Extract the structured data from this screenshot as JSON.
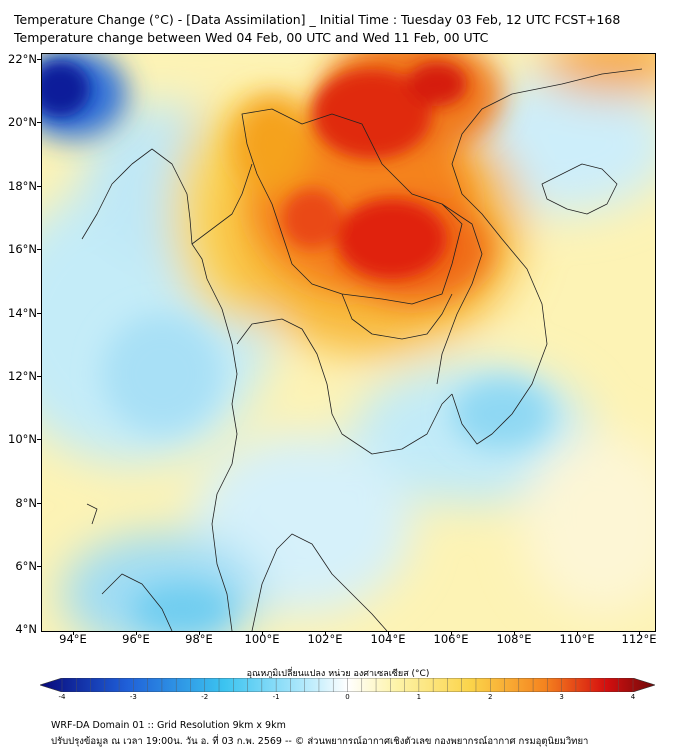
{
  "header": {
    "title_line1": "Temperature Change (°C) - [Data Assimilation] _ Initial Time : Tuesday 03 Feb, 12 UTC FCST+168",
    "title_line2": "Temperature change between Wed 04 Feb, 00 UTC and Wed 11 Feb, 00 UTC"
  },
  "axes": {
    "y_ticks": [
      "22°N",
      "20°N",
      "18°N",
      "16°N",
      "14°N",
      "12°N",
      "10°N",
      "8°N",
      "6°N",
      "4°N"
    ],
    "x_ticks": [
      "94°E",
      "96°E",
      "98°E",
      "100°E",
      "102°E",
      "104°E",
      "106°E",
      "108°E",
      "110°E",
      "112°E"
    ]
  },
  "map_extent": {
    "lon_min": 93.0,
    "lon_max": 112.5,
    "lat_min": 4.0,
    "lat_max": 22.2
  },
  "colorbar": {
    "title": "อุณหภูมิเปลี่ยนแปลง หน่วย องศาเซลเซียส (°C)",
    "min": -4,
    "max": 4,
    "tick_labels": [
      "-4",
      "-3",
      "-2",
      "-1",
      "0",
      "1",
      "2",
      "3",
      "4"
    ],
    "colors": {
      "cold_extreme": "#08087a",
      "cold": "#1f5fd8",
      "cool": "#3cc4f0",
      "cool_light": "#a8e6fb",
      "neutral": "#ffffff",
      "warm_light": "#fdf3a8",
      "warm": "#fbd44a",
      "hot": "#f5841f",
      "hot_extreme": "#d50f0f",
      "max": "#6e0a0a"
    }
  },
  "footer": {
    "line1": "WRF-DA Domain 01 :: Grid Resolution 9km x 9km",
    "line2": "ปรับปรุงข้อมูล ณ เวลา 19:00น. วัน อ. ที่ 03 ก.พ. 2569 -- © ส่วนพยากรณ์อากาศเชิงตัวเลข กองพยากรณ์อากาศ กรมอุตุนิยมวิทยา"
  }
}
